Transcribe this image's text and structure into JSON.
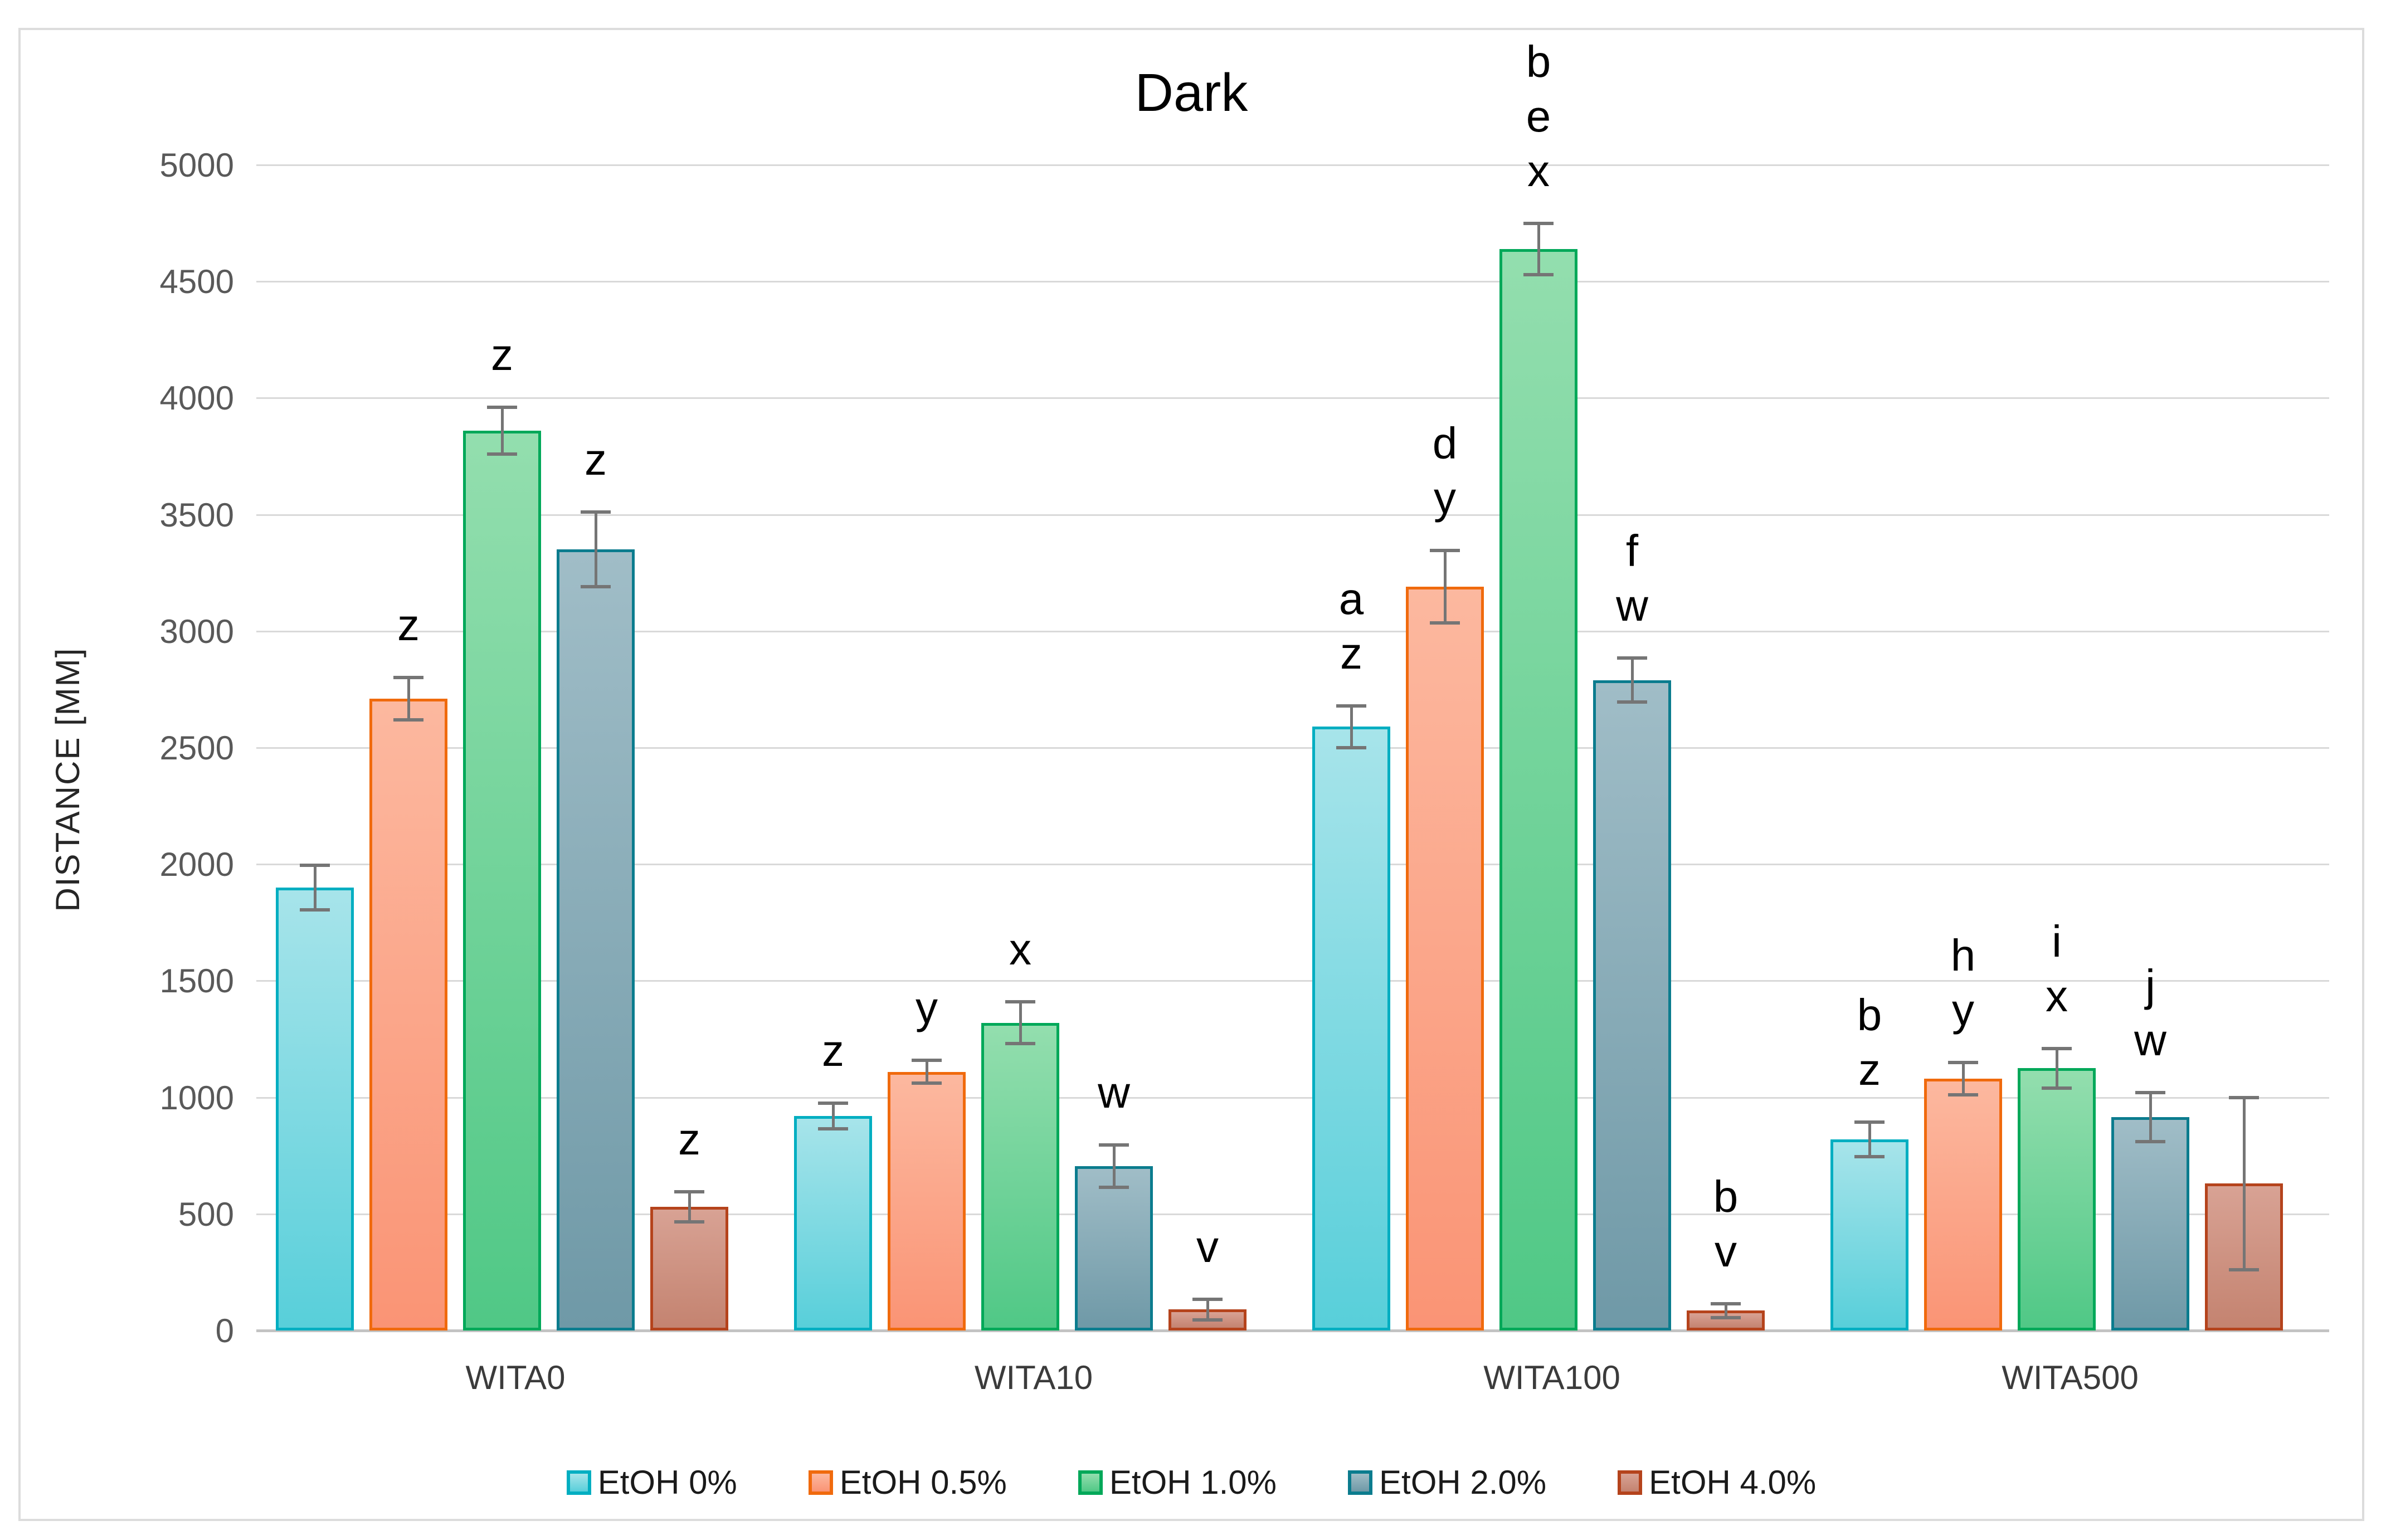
{
  "title": "Dark",
  "y_axis": {
    "label": "DISTANCE [MM]",
    "ticks": [
      0,
      500,
      1000,
      1500,
      2000,
      2500,
      3000,
      3500,
      4000,
      4500,
      5000
    ]
  },
  "colors": {
    "gridline": "#d9d9d9",
    "axis_line": "#c3c3c3",
    "error_bar": "#757575",
    "tick_text": "#595959",
    "label_text": "#3b3b3b"
  },
  "chart_data": {
    "type": "bar",
    "title": "Dark",
    "xlabel": "",
    "ylabel": "DISTANCE [MM]",
    "ylim": [
      0,
      5000
    ],
    "ytick_step": 500,
    "grid": true,
    "legend_position": "bottom",
    "categories": [
      "WITA0",
      "WITA10",
      "WITA100",
      "WITA500"
    ],
    "series": [
      {
        "name": "EtOH 0%",
        "border": "#00AEC1",
        "fill_top": "#A7E4EA",
        "fill_bottom": "#58CFDA",
        "values": [
          1900,
          920,
          2590,
          820
        ],
        "errors": [
          95,
          55,
          90,
          75
        ],
        "letters": [
          [],
          [
            "z"
          ],
          [
            "a",
            "z"
          ],
          [
            "b",
            "z"
          ]
        ]
      },
      {
        "name": "EtOH 0.5%",
        "border": "#F06A0D",
        "fill_top": "#FCB89F",
        "fill_bottom": "#FA9475",
        "values": [
          2710,
          1110,
          3190,
          1080
        ],
        "errors": [
          90,
          50,
          155,
          70
        ],
        "letters": [
          [
            "z"
          ],
          [
            "y"
          ],
          [
            "d",
            "y"
          ],
          [
            "h",
            "y"
          ]
        ]
      },
      {
        "name": "EtOH 1.0%",
        "border": "#00A859",
        "fill_top": "#93DEAE",
        "fill_bottom": "#50C886",
        "values": [
          3860,
          1320,
          4640,
          1125
        ],
        "errors": [
          100,
          90,
          110,
          85
        ],
        "letters": [
          [
            "z"
          ],
          [
            "x"
          ],
          [
            "b",
            "e",
            "x"
          ],
          [
            "i",
            "x"
          ]
        ]
      },
      {
        "name": "EtOH 2.0%",
        "border": "#0B7C8E",
        "fill_top": "#A0BDC7",
        "fill_bottom": "#6F99A7",
        "values": [
          3350,
          705,
          2790,
          915
        ],
        "errors": [
          160,
          90,
          95,
          105
        ],
        "letters": [
          [
            "z"
          ],
          [
            "w"
          ],
          [
            "f",
            "w"
          ],
          [
            "j",
            "w"
          ]
        ]
      },
      {
        "name": "EtOH 4.0%",
        "border": "#B5431C",
        "fill_top": "#D8A294",
        "fill_bottom": "#C48370",
        "values": [
          530,
          90,
          85,
          630
        ],
        "errors": [
          65,
          45,
          30,
          370
        ],
        "letters": [
          [
            "z"
          ],
          [
            "v"
          ],
          [
            "b",
            "v"
          ],
          []
        ]
      }
    ]
  }
}
